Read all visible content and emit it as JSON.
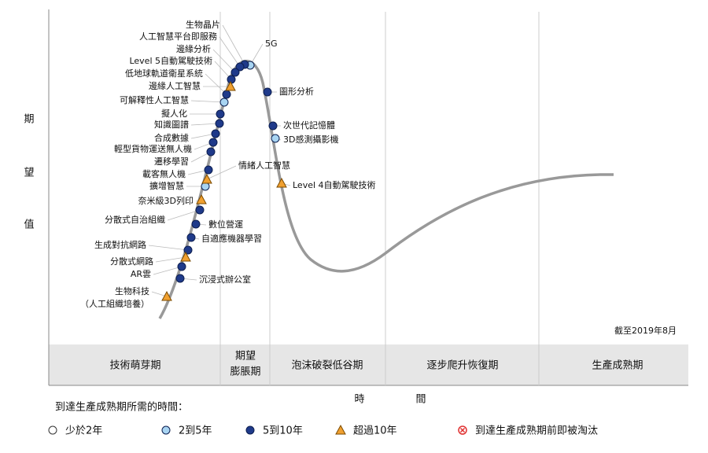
{
  "y_axis_label": [
    "期",
    "望",
    "值"
  ],
  "x_axis_label": [
    "時",
    "間"
  ],
  "date_note": "截至2019年8月",
  "phases": [
    "技術萌芽期",
    [
      "期望",
      "膨脹期"
    ],
    "泡沫破裂低谷期",
    "逐步爬升恢復期",
    "生產成熟期"
  ],
  "legend": {
    "title": "到達生產成熟期所需的時間：",
    "items": [
      {
        "label": "少於2年",
        "marker": "circle",
        "color": "#ffffff",
        "nodes": []
      },
      {
        "label": "2到5年",
        "marker": "circle",
        "color": "#a8d4f2",
        "nodes": [
          {
            "label": "5G"
          },
          {
            "label": "可解釋性人工智慧"
          },
          {
            "label": "擴增智慧"
          },
          {
            "label": "3D感測攝影機"
          }
        ]
      },
      {
        "label": "5到10年",
        "marker": "circle",
        "color": "#1f3a8a",
        "nodes": [
          {
            "label": "生物晶片"
          },
          {
            "label": "人工智慧平台即服務"
          },
          {
            "label": "邊緣分析"
          },
          {
            "label": "Level 5自動駕駛技術"
          },
          {
            "label": "低地球軌道衛星系統"
          },
          {
            "label": "圖形分析"
          },
          {
            "label": "次世代記憶體"
          },
          {
            "label": "擬人化"
          },
          {
            "label": "知識圖譜"
          },
          {
            "label": "合成數據"
          },
          {
            "label": "輕型貨物運送無人機"
          },
          {
            "label": "遷移學習"
          },
          {
            "label": "載客無人機"
          },
          {
            "label": "分散式自治組織"
          },
          {
            "label": "數位營運"
          },
          {
            "label": "自適應機器學習"
          },
          {
            "label": "生成對抗網路"
          },
          {
            "label": "AR雲"
          },
          {
            "label": "沉浸式辦公室"
          }
        ]
      },
      {
        "label": "超過10年",
        "marker": "triangle",
        "color": "#f0a030",
        "nodes": [
          {
            "label": "邊緣人工智慧"
          },
          {
            "label": "情緒人工智慧"
          },
          {
            "label": "奈米級3D列印"
          },
          {
            "label": "分散式網路"
          },
          {
            "label": [
              "生物科技",
              "（人工組織培養）"
            ]
          },
          {
            "label": "Level 4自動駕駛技術"
          }
        ]
      },
      {
        "label": "到達生產成熟期前即被淘汰",
        "marker": "cross",
        "color": "#e03030",
        "nodes": []
      }
    ]
  }
}
